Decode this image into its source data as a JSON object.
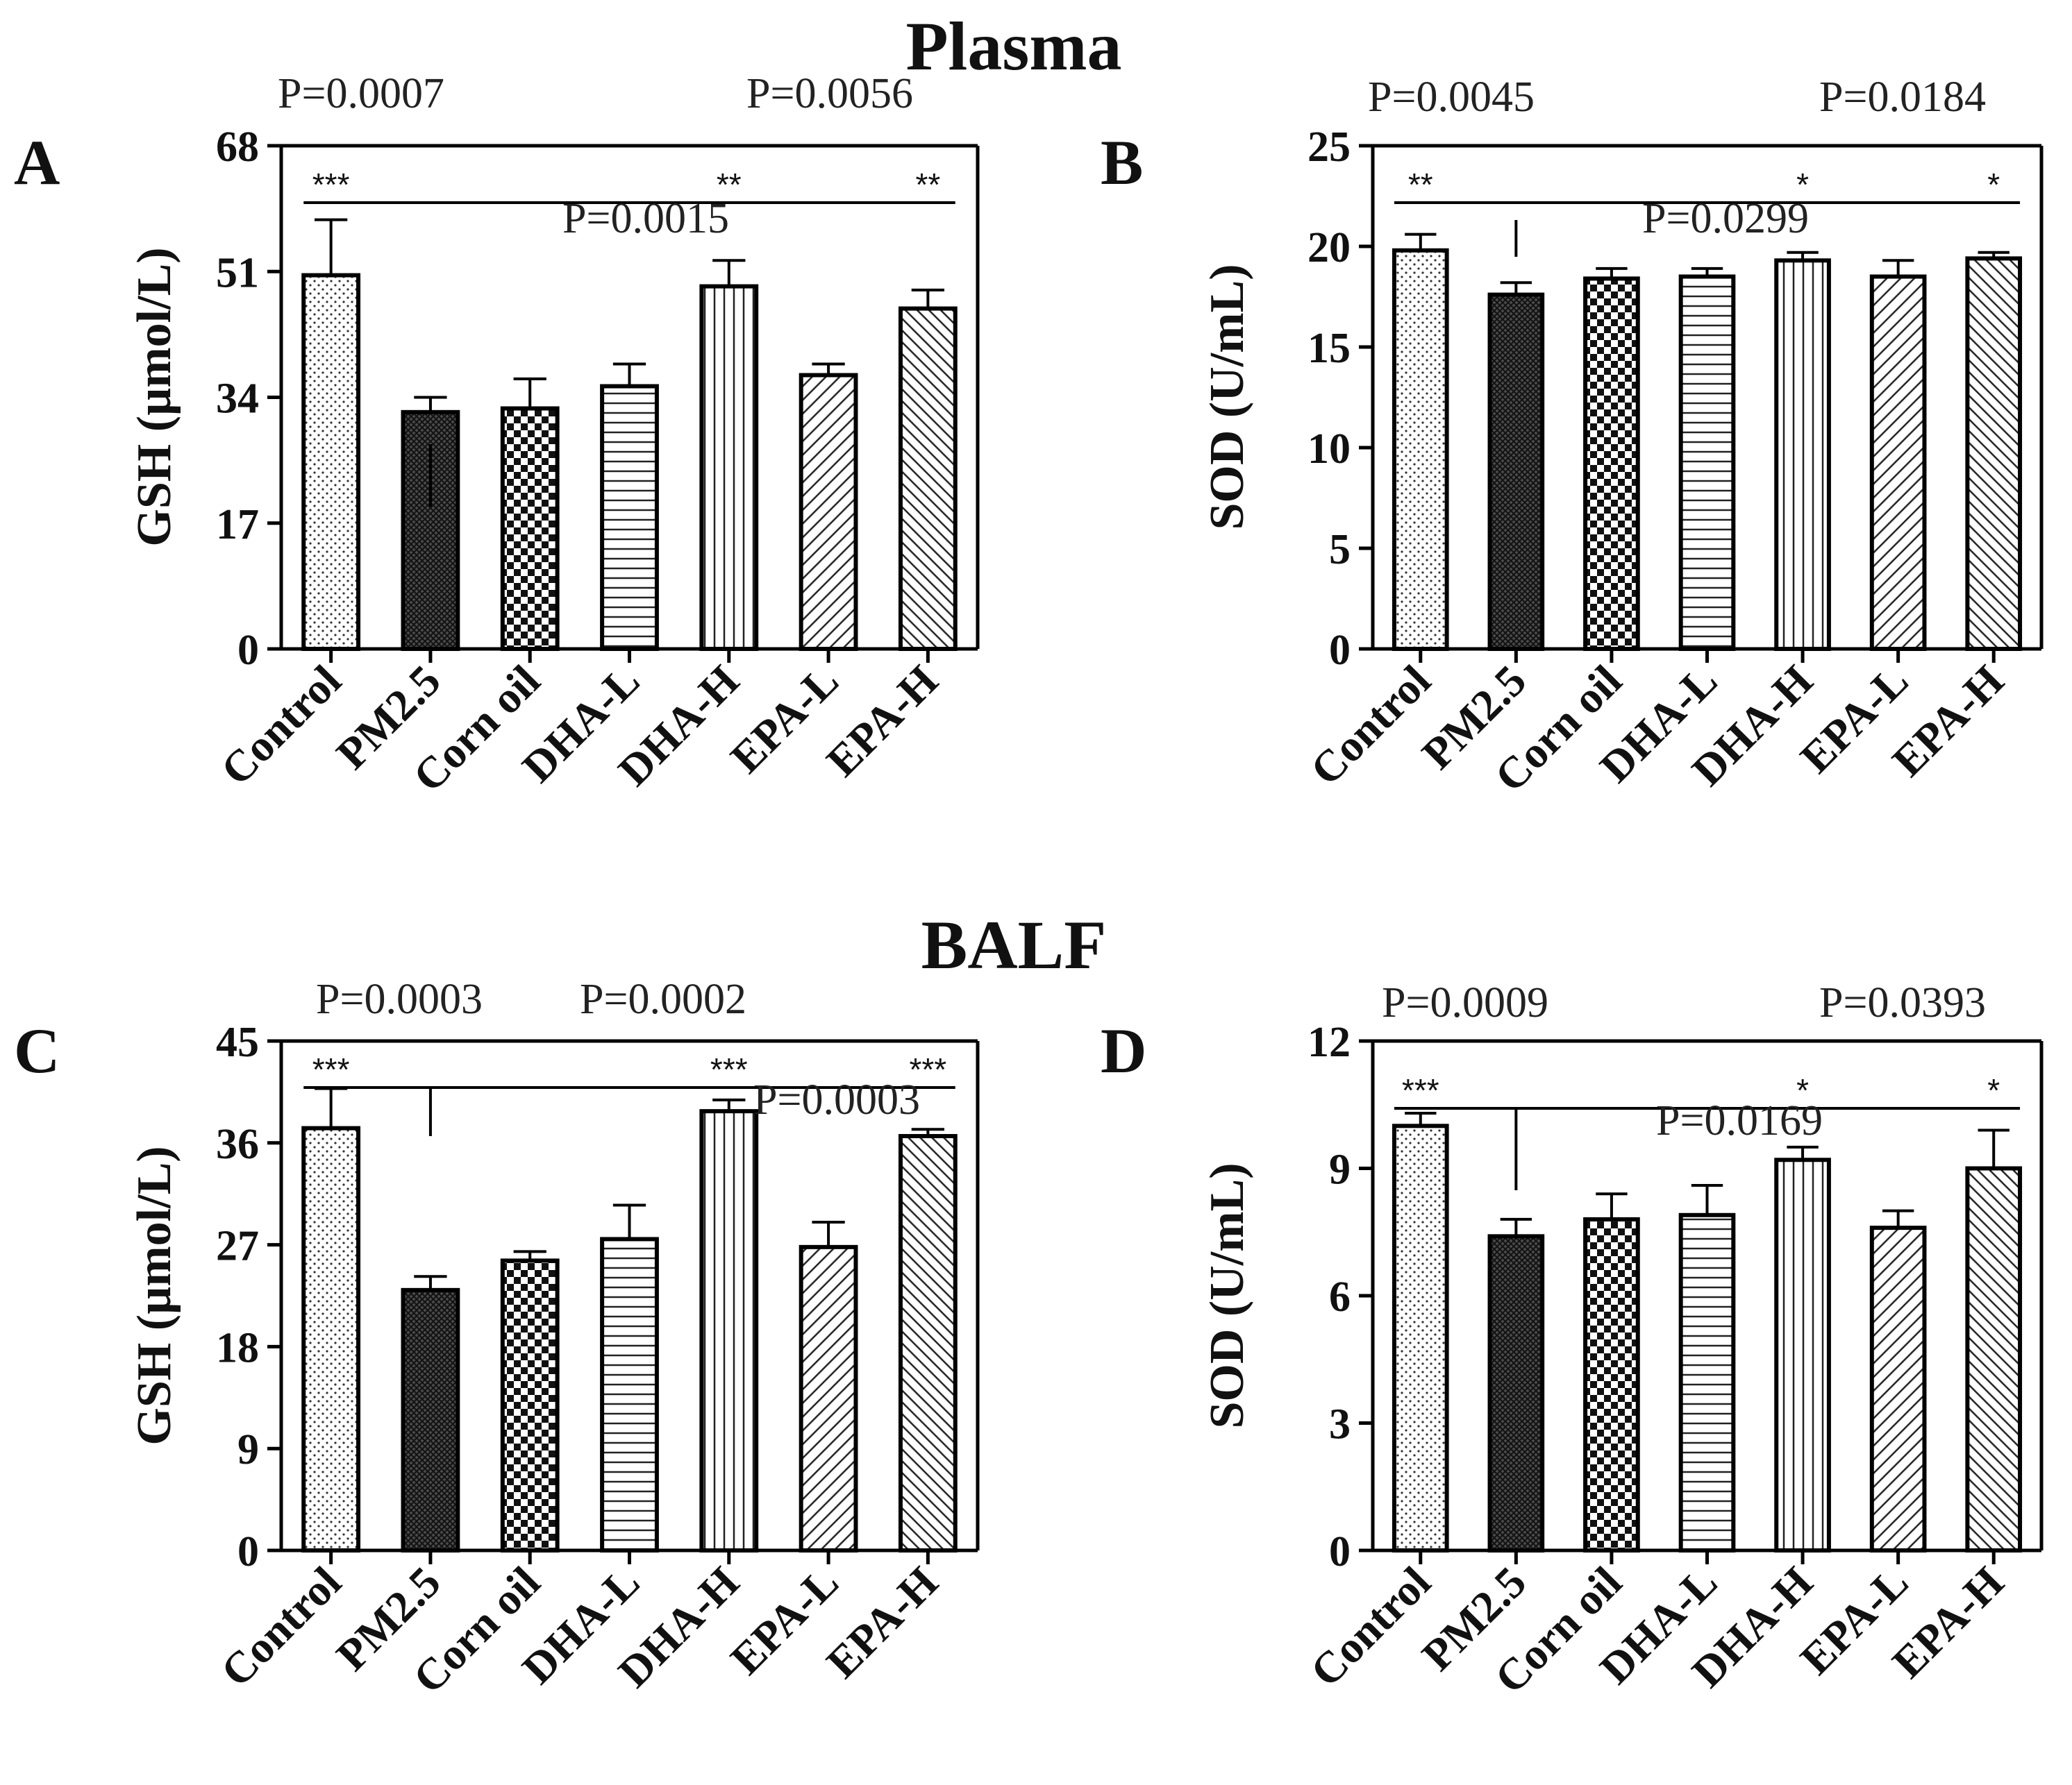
{
  "titles": {
    "plasma": "Plasma",
    "balf": "BALF"
  },
  "chart_data": [
    {
      "panel": "A",
      "type": "bar",
      "title": "",
      "ylabel": "GSH (µmol/L)",
      "ylim": [
        0,
        68
      ],
      "yticks": [
        0,
        17,
        34,
        51,
        68
      ],
      "categories": [
        "Control",
        "PM2.5",
        "Corn oil",
        "DHA-L",
        "DHA-H",
        "EPA-L",
        "EPA-H"
      ],
      "values": [
        50.5,
        32,
        32.5,
        35.5,
        49,
        37,
        46
      ],
      "errors": [
        7.5,
        2,
        4,
        3,
        3.5,
        1.5,
        2.5
      ],
      "significance": [
        "***",
        "",
        "",
        "",
        "**",
        "",
        "**"
      ],
      "pvalues": [
        "P=0.0007",
        "P=0.0056",
        "P=0.0015"
      ]
    },
    {
      "panel": "B",
      "type": "bar",
      "ylabel": "SOD (U/mL)",
      "ylim": [
        0,
        25
      ],
      "yticks": [
        0,
        5,
        10,
        15,
        20,
        25
      ],
      "categories": [
        "Control",
        "PM2.5",
        "Corn oil",
        "DHA-L",
        "DHA-H",
        "EPA-L",
        "EPA-H"
      ],
      "values": [
        19.8,
        17.6,
        18.4,
        18.5,
        19.3,
        18.5,
        19.4
      ],
      "errors": [
        0.8,
        0.6,
        0.5,
        0.4,
        0.4,
        0.8,
        0.3
      ],
      "significance": [
        "**",
        "",
        "",
        "",
        "*",
        "",
        "*"
      ],
      "pvalues": [
        "P=0.0045",
        "P=0.0184",
        "P=0.0299"
      ]
    },
    {
      "panel": "C",
      "type": "bar",
      "ylabel": "GSH (µmol/L)",
      "ylim": [
        0,
        45
      ],
      "yticks": [
        0,
        9,
        18,
        27,
        36,
        45
      ],
      "categories": [
        "Control",
        "PM2.5",
        "Corn oil",
        "DHA-L",
        "DHA-H",
        "EPA-L",
        "EPA-H"
      ],
      "values": [
        37.3,
        23,
        25.6,
        27.5,
        38.8,
        26.8,
        36.6
      ],
      "errors": [
        3.5,
        1.2,
        0.8,
        3,
        1,
        2.2,
        0.6
      ],
      "significance": [
        "***",
        "",
        "",
        "",
        "***",
        "",
        "***"
      ],
      "pvalues": [
        "P=0.0003",
        "P=0.0002",
        "P=0.0003"
      ]
    },
    {
      "panel": "D",
      "type": "bar",
      "ylabel": "SOD (U/mL)",
      "ylim": [
        0,
        12
      ],
      "yticks": [
        0,
        3,
        6,
        9,
        12
      ],
      "categories": [
        "Control",
        "PM2.5",
        "Corn oil",
        "DHA-L",
        "DHA-H",
        "EPA-L",
        "EPA-H"
      ],
      "values": [
        10,
        7.4,
        7.8,
        7.9,
        9.2,
        7.6,
        9
      ],
      "errors": [
        0.3,
        0.4,
        0.6,
        0.7,
        0.3,
        0.4,
        0.9
      ],
      "significance": [
        "***",
        "",
        "",
        "",
        "*",
        "",
        "*"
      ],
      "pvalues": [
        "P=0.0009",
        "P=0.0393",
        "P=0.0169"
      ]
    }
  ]
}
